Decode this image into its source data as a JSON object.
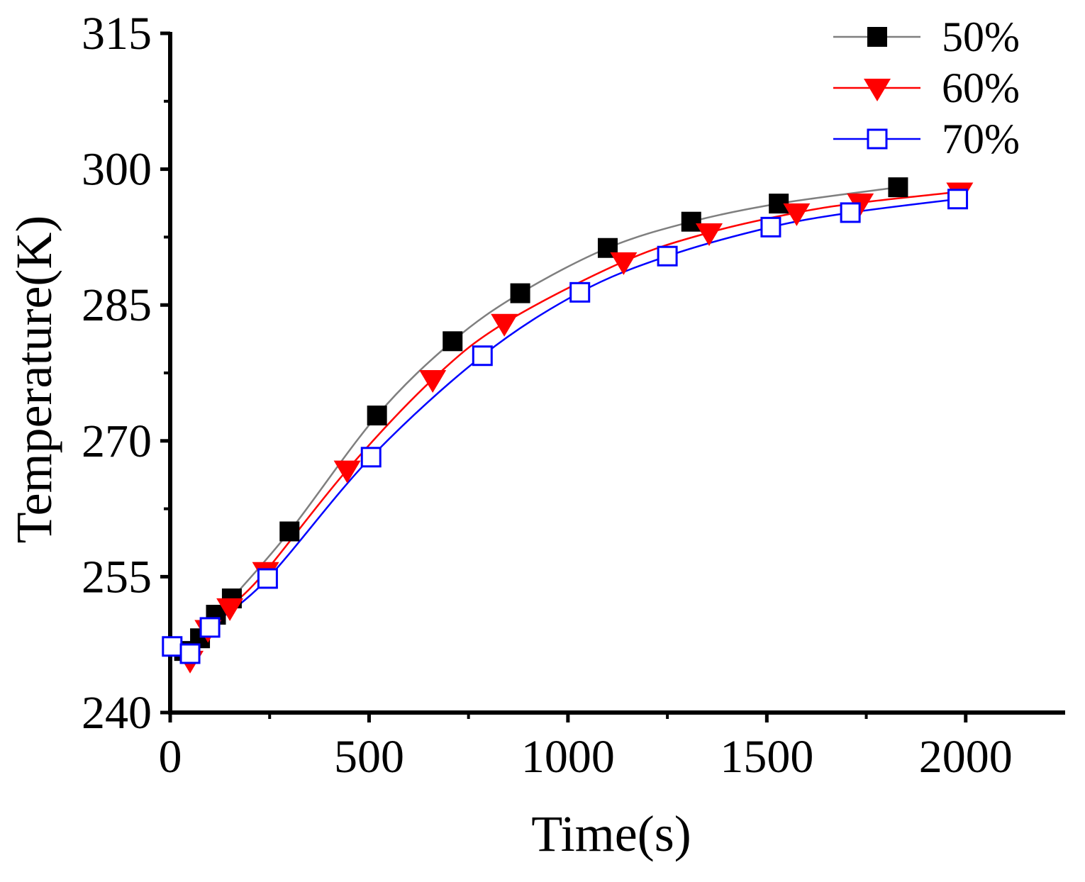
{
  "chart_data": {
    "type": "line",
    "title": "",
    "xlabel": "Time(s)",
    "ylabel": "Temperature(K)",
    "xlim": [
      0,
      2250
    ],
    "ylim": [
      240,
      315
    ],
    "xticks": [
      0,
      500,
      1000,
      1500,
      2000
    ],
    "yticks": [
      240,
      255,
      270,
      285,
      300,
      315
    ],
    "legend_position": "top-right",
    "series": [
      {
        "name": "50%",
        "color": "#7f7f7f",
        "marker_color": "#000000",
        "marker": "square-filled",
        "x": [
          35,
          75,
          115,
          155,
          300,
          520,
          710,
          880,
          1100,
          1310,
          1530,
          1830
        ],
        "y": [
          246.8,
          248.2,
          250.8,
          252.6,
          260.0,
          272.8,
          281.0,
          286.3,
          291.3,
          294.2,
          296.2,
          298.0
        ]
      },
      {
        "name": "60%",
        "color": "#ff0000",
        "marker_color": "#ff0000",
        "marker": "triangle-down-filled",
        "x": [
          50,
          95,
          150,
          240,
          445,
          660,
          840,
          1140,
          1355,
          1575,
          1735,
          1985
        ],
        "y": [
          245.8,
          249.2,
          251.6,
          255.6,
          266.8,
          276.8,
          283.0,
          289.8,
          293.0,
          295.2,
          296.3,
          297.5
        ]
      },
      {
        "name": "70%",
        "color": "#0000ff",
        "marker_color": "#0000ff",
        "marker": "square-open",
        "x": [
          5,
          50,
          100,
          245,
          505,
          785,
          1030,
          1250,
          1510,
          1710,
          1980
        ],
        "y": [
          247.3,
          246.5,
          249.4,
          254.8,
          268.2,
          279.4,
          286.4,
          290.4,
          293.6,
          295.2,
          296.7
        ]
      }
    ]
  }
}
